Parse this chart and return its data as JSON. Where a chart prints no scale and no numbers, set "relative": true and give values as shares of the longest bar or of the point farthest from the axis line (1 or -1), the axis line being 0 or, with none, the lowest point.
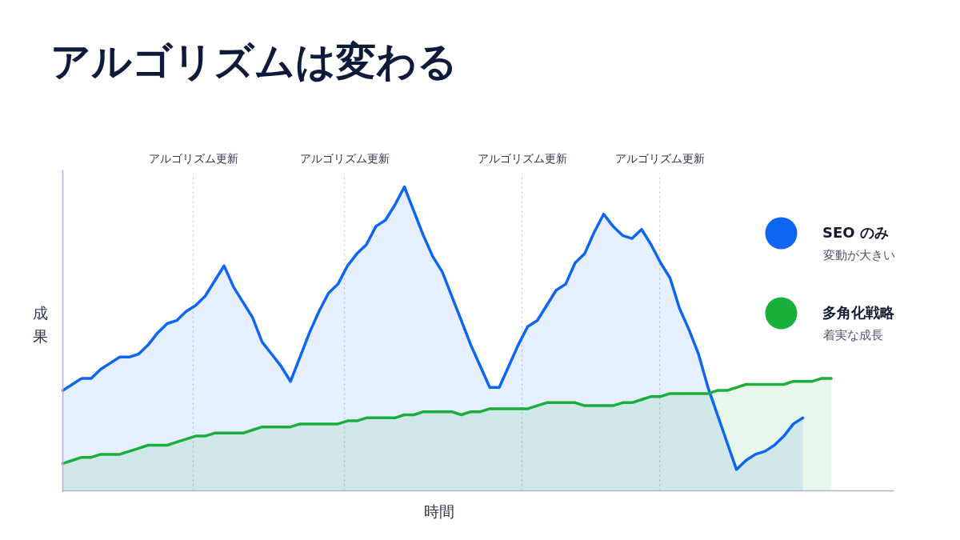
{
  "chart_data": {
    "type": "area",
    "title": "アルゴリズムは変わる",
    "xlabel": "時間",
    "ylabel": "成果",
    "relative": true,
    "categories": [
      null,
      null,
      null,
      null,
      null,
      null,
      null,
      null,
      null,
      null,
      null,
      null,
      null,
      null,
      null,
      null,
      null,
      null,
      null,
      null,
      null,
      null,
      null,
      null,
      null,
      null,
      null,
      null,
      null,
      null,
      null,
      null,
      null,
      null,
      null,
      null,
      null,
      null,
      null,
      null,
      null,
      null,
      null,
      null,
      null,
      null,
      null,
      null,
      null,
      null,
      null,
      null,
      null,
      null,
      null,
      null,
      null,
      null,
      null,
      null,
      null,
      null,
      null,
      null,
      null,
      null,
      null,
      null,
      null,
      null,
      null,
      null,
      null,
      null,
      null,
      null,
      null,
      null,
      null,
      null,
      null,
      null
    ],
    "series": [
      {
        "name": "SEO のみ",
        "color": "#0d66f2",
        "values": [
          0.33,
          0.35,
          0.37,
          0.37,
          0.4,
          0.42,
          0.44,
          0.44,
          0.45,
          0.48,
          0.52,
          0.55,
          0.56,
          0.59,
          0.61,
          0.64,
          0.69,
          0.74,
          0.67,
          0.62,
          0.57,
          0.49,
          0.45,
          0.41,
          0.36,
          0.44,
          0.52,
          0.59,
          0.65,
          0.68,
          0.74,
          0.78,
          0.81,
          0.87,
          0.89,
          0.94,
          1.0,
          0.92,
          0.84,
          0.77,
          0.72,
          0.64,
          0.56,
          0.48,
          0.41,
          0.34,
          0.34,
          0.41,
          0.48,
          0.54,
          0.56,
          0.61,
          0.66,
          0.68,
          0.75,
          0.78,
          0.85,
          0.91,
          0.87,
          0.84,
          0.83,
          0.86,
          0.81,
          0.75,
          0.7,
          0.6,
          0.53,
          0.45,
          0.34,
          0.25,
          0.16,
          0.07,
          0.1,
          0.12,
          0.13,
          0.15,
          0.18,
          0.22,
          0.24,
          null,
          null,
          null
        ]
      },
      {
        "name": "多角化戦略",
        "color": "#1aaf3a",
        "values": [
          0.09,
          0.1,
          0.11,
          0.11,
          0.12,
          0.12,
          0.12,
          0.13,
          0.14,
          0.15,
          0.15,
          0.15,
          0.16,
          0.17,
          0.18,
          0.18,
          0.19,
          0.19,
          0.19,
          0.19,
          0.2,
          0.21,
          0.21,
          0.21,
          0.21,
          0.22,
          0.22,
          0.22,
          0.22,
          0.22,
          0.23,
          0.23,
          0.24,
          0.24,
          0.24,
          0.24,
          0.25,
          0.25,
          0.26,
          0.26,
          0.26,
          0.26,
          0.25,
          0.26,
          0.26,
          0.27,
          0.27,
          0.27,
          0.27,
          0.27,
          0.28,
          0.29,
          0.29,
          0.29,
          0.29,
          0.28,
          0.28,
          0.28,
          0.28,
          0.29,
          0.29,
          0.3,
          0.31,
          0.31,
          0.32,
          0.32,
          0.32,
          0.32,
          0.32,
          0.33,
          0.33,
          0.34,
          0.35,
          0.35,
          0.35,
          0.35,
          0.35,
          0.36,
          0.36,
          0.36,
          0.37,
          0.37
        ]
      }
    ],
    "legend": "right",
    "annotations": [
      "アルゴリズム更新",
      "アルゴリズム更新",
      "アルゴリズム更新",
      "アルゴリズム更新",
      "変動が大きい",
      "着実な成長"
    ]
  }
}
